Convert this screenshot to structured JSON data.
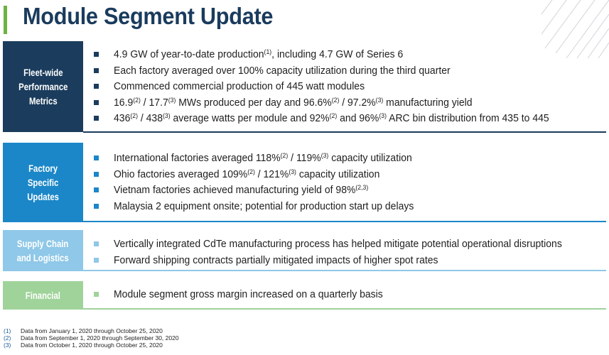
{
  "title": "Module Segment Update",
  "colors": {
    "title": "#1a3b5d",
    "accent_green": "#6cb33f",
    "panel_navy": "#1b3c5c",
    "panel_blue": "#1b87c8",
    "panel_lightblue": "#8fc8e8",
    "panel_green": "#9fd39a"
  },
  "sections": [
    {
      "label_lines": [
        "Fleet-wide",
        "Performance",
        "Metrics"
      ],
      "bullets": [
        {
          "parts": [
            {
              "t": "4.9 GW of year-to-date production"
            },
            {
              "sup": "(1)"
            },
            {
              "t": ", including 4.7 GW of Series 6"
            }
          ]
        },
        {
          "parts": [
            {
              "t": "Each factory averaged over 100% capacity utilization during the third quarter"
            }
          ]
        },
        {
          "parts": [
            {
              "t": "Commenced commercial production of 445 watt modules"
            }
          ]
        },
        {
          "parts": [
            {
              "t": "16.9"
            },
            {
              "sup": "(2)"
            },
            {
              "t": " / 17.7"
            },
            {
              "sup": "(3)"
            },
            {
              "t": " MWs produced per day and 96.6%"
            },
            {
              "sup": "(2)"
            },
            {
              "t": " / 97.2%"
            },
            {
              "sup": "(3)"
            },
            {
              "t": " manufacturing yield"
            }
          ]
        },
        {
          "parts": [
            {
              "t": "436"
            },
            {
              "sup": "(2)"
            },
            {
              "t": " / 438"
            },
            {
              "sup": "(3)"
            },
            {
              "t": " average watts per module and 92%"
            },
            {
              "sup": "(2)"
            },
            {
              "t": " and 96%"
            },
            {
              "sup": "(3)"
            },
            {
              "t": " ARC bin distribution from 435 to 445"
            }
          ]
        }
      ]
    },
    {
      "label_lines": [
        "Factory",
        "Specific",
        "Updates"
      ],
      "bullets": [
        {
          "parts": [
            {
              "t": "International factories averaged 118%"
            },
            {
              "sup": "(2)"
            },
            {
              "t": " / 119%"
            },
            {
              "sup": "(3)"
            },
            {
              "t": " capacity utilization"
            }
          ]
        },
        {
          "parts": [
            {
              "t": "Ohio factories averaged 109%"
            },
            {
              "sup": "(2)"
            },
            {
              "t": " / 121%"
            },
            {
              "sup": "(3)"
            },
            {
              "t": " capacity utilization"
            }
          ]
        },
        {
          "parts": [
            {
              "t": "Vietnam factories achieved manufacturing yield of 98%"
            },
            {
              "sup": "(2,3)"
            }
          ]
        },
        {
          "parts": [
            {
              "t": "Malaysia 2 equipment onsite; potential for production start up delays"
            }
          ]
        }
      ]
    },
    {
      "label_lines": [
        "Supply Chain",
        "and Logistics"
      ],
      "bullets": [
        {
          "parts": [
            {
              "t": "Vertically integrated CdTe manufacturing process has helped mitigate potential operational disruptions"
            }
          ]
        },
        {
          "parts": [
            {
              "t": "Forward shipping contracts partially mitigated impacts of higher spot rates"
            }
          ]
        }
      ]
    },
    {
      "label_lines": [
        "Financial"
      ],
      "bullets": [
        {
          "parts": [
            {
              "t": "Module segment gross margin increased on a quarterly basis"
            }
          ]
        }
      ]
    }
  ],
  "footnotes": [
    {
      "num": "(1)",
      "text": "Data from January 1, 2020 through October 25, 2020"
    },
    {
      "num": "(2)",
      "text": "Data from September 1, 2020 through September 30, 2020"
    },
    {
      "num": "(3)",
      "text": "Data from October 1, 2020 through October 25, 2020"
    }
  ]
}
